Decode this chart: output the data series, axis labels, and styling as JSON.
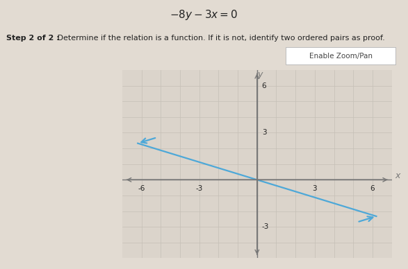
{
  "title": "$-8y - 3x = 0$",
  "step_text_bold": "Step 2 of 2 : ",
  "step_text_normal": " Determine if the relation is a function. If it is not, identify two ordered pairs as proof.",
  "zoom_pan_text": "Enable Zoom/Pan",
  "xlim": [
    -7,
    7
  ],
  "ylim": [
    -5,
    7
  ],
  "xtick_labels": [
    -6,
    -3,
    3,
    6
  ],
  "ytick_labels_pos": [
    3,
    6
  ],
  "ytick_labels_neg": [
    -3
  ],
  "line_color": "#4da8d8",
  "line_x_start": -6.2,
  "line_x_end": 6.2,
  "slope": -0.375,
  "bg_color": "#e2dbd2",
  "plot_bg": "#dbd4cb",
  "grid_color": "#c5bfb6",
  "axis_color": "#777777",
  "text_color": "#222222",
  "title_fontsize": 11,
  "step_fontsize": 8,
  "tick_fontsize": 7.5
}
